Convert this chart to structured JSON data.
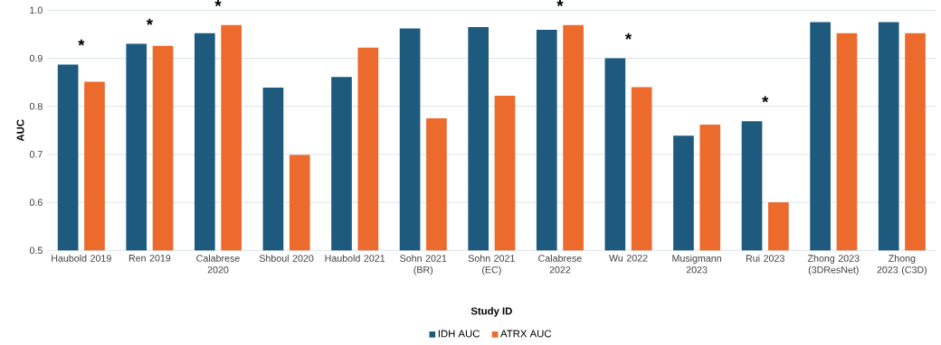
{
  "chart_data": {
    "type": "bar",
    "xlabel": "Study ID",
    "ylabel": "AUC",
    "categories": [
      "Haubold 2019",
      "Ren 2019",
      "Calabrese 2020",
      "Shboul 2020",
      "Haubold 2021",
      "Sohn 2021 (BR)",
      "Sohn 2021 (EC)",
      "Calabrese 2022",
      "Wu 2022",
      "Musigmann 2023",
      "Rui 2023",
      "Zhong 2023 (3DResNet)",
      "Zhong 2023 (C3D)"
    ],
    "series": [
      {
        "name": "IDH AUC",
        "color": "#1d5a7e",
        "values": [
          0.887,
          0.93,
          0.952,
          0.839,
          0.861,
          0.962,
          0.965,
          0.959,
          0.9,
          0.739,
          0.769,
          0.975,
          0.975
        ]
      },
      {
        "name": "ATRX AUC",
        "color": "#ec6a2c",
        "values": [
          0.851,
          0.926,
          0.969,
          0.699,
          0.922,
          0.775,
          0.822,
          0.969,
          0.84,
          0.762,
          0.6,
          0.952,
          0.952
        ]
      }
    ],
    "ylim": [
      0.5,
      1.0
    ],
    "yticks": [
      {
        "value": 0.5,
        "label": "0.5"
      },
      {
        "value": 0.6,
        "label": "0.6"
      },
      {
        "value": 0.7,
        "label": "0.7"
      },
      {
        "value": 0.8,
        "label": "0.8"
      },
      {
        "value": 0.9,
        "label": "0.9"
      },
      {
        "value": 1.0,
        "label": "1.0"
      }
    ],
    "grid": "y",
    "legend": "bottom",
    "annotations": [
      "*",
      "*",
      "*",
      "*",
      "*",
      "*"
    ]
  }
}
